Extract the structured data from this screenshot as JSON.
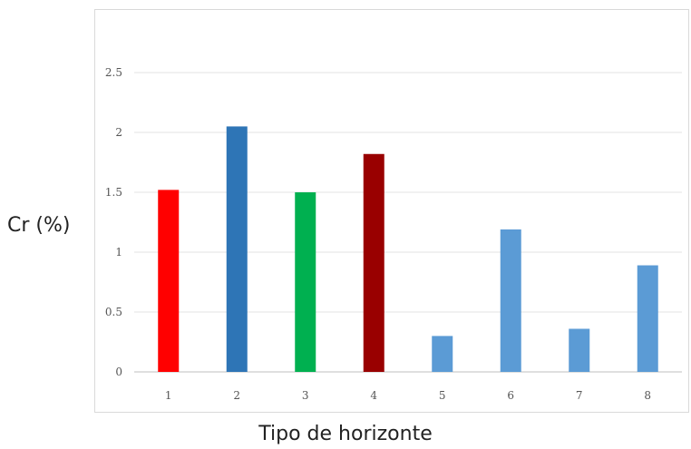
{
  "chart_data": {
    "type": "bar",
    "title": "",
    "xlabel": "Tipo de horizonte",
    "ylabel": "Cr (%)",
    "categories": [
      "1",
      "2",
      "3",
      "4",
      "5",
      "6",
      "7",
      "8"
    ],
    "values": [
      1.52,
      2.05,
      1.5,
      1.82,
      0.3,
      1.19,
      0.36,
      0.89
    ],
    "bar_colors": [
      "#ff0000",
      "#2e75b6",
      "#00b050",
      "#990000",
      "#5b9bd5",
      "#5b9bd5",
      "#5b9bd5",
      "#5b9bd5"
    ],
    "yticks": [
      "0",
      "0.5",
      "1",
      "1.5",
      "2",
      "2.5"
    ],
    "ylim": [
      0,
      2.5
    ],
    "grid": true,
    "legend": "none"
  }
}
